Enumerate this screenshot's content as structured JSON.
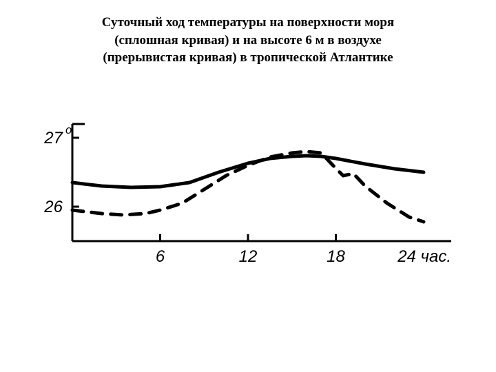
{
  "title": {
    "line1": "Суточный ход температуры на поверхности моря",
    "line2": "(сплошная кривая) и на высоте 6 м в воздухе",
    "line3": "(прерывистая кривая)  в тропической Атлантике",
    "fontsize": 19,
    "weight": "bold",
    "color": "#000000"
  },
  "chart": {
    "type": "line",
    "background_color": "#ffffff",
    "stroke_color": "#000000",
    "xlim": [
      0,
      24
    ],
    "ylim": [
      25.5,
      27.2
    ],
    "xticks": [
      6,
      12,
      18
    ],
    "xtick_labels": [
      "6",
      "12",
      "18"
    ],
    "x_end_label": "24 час.",
    "yticks": [
      26,
      27
    ],
    "ytick_labels": [
      "26",
      "27"
    ],
    "y_top_symbol": "o",
    "axis_width": 3,
    "tick_len": 10,
    "label_fontsize": 24,
    "label_font": "Arial, sans-serif",
    "label_style": "italic",
    "series_solid": {
      "dash": "none",
      "width": 5,
      "color": "#000000",
      "points": [
        [
          0,
          26.35
        ],
        [
          2,
          26.3
        ],
        [
          4,
          26.28
        ],
        [
          6,
          26.29
        ],
        [
          8,
          26.35
        ],
        [
          10,
          26.5
        ],
        [
          12,
          26.63
        ],
        [
          13.5,
          26.7
        ],
        [
          15,
          26.73
        ],
        [
          16,
          26.74
        ],
        [
          17,
          26.73
        ],
        [
          18,
          26.7
        ],
        [
          20,
          26.62
        ],
        [
          22,
          26.55
        ],
        [
          24,
          26.5
        ]
      ]
    },
    "series_dashed": {
      "dash": "16 12",
      "width": 5,
      "color": "#000000",
      "points": [
        [
          0,
          25.95
        ],
        [
          2,
          25.9
        ],
        [
          3.5,
          25.88
        ],
        [
          5,
          25.9
        ],
        [
          6,
          25.95
        ],
        [
          7.5,
          26.05
        ],
        [
          9,
          26.25
        ],
        [
          10.5,
          26.45
        ],
        [
          12,
          26.6
        ],
        [
          13.5,
          26.72
        ],
        [
          15,
          26.78
        ],
        [
          16,
          26.8
        ],
        [
          17,
          26.78
        ],
        [
          17.8,
          26.6
        ],
        [
          18.5,
          26.45
        ],
        [
          19.2,
          26.48
        ],
        [
          20,
          26.3
        ],
        [
          21.5,
          26.05
        ],
        [
          23,
          25.85
        ],
        [
          24,
          25.78
        ]
      ]
    }
  }
}
